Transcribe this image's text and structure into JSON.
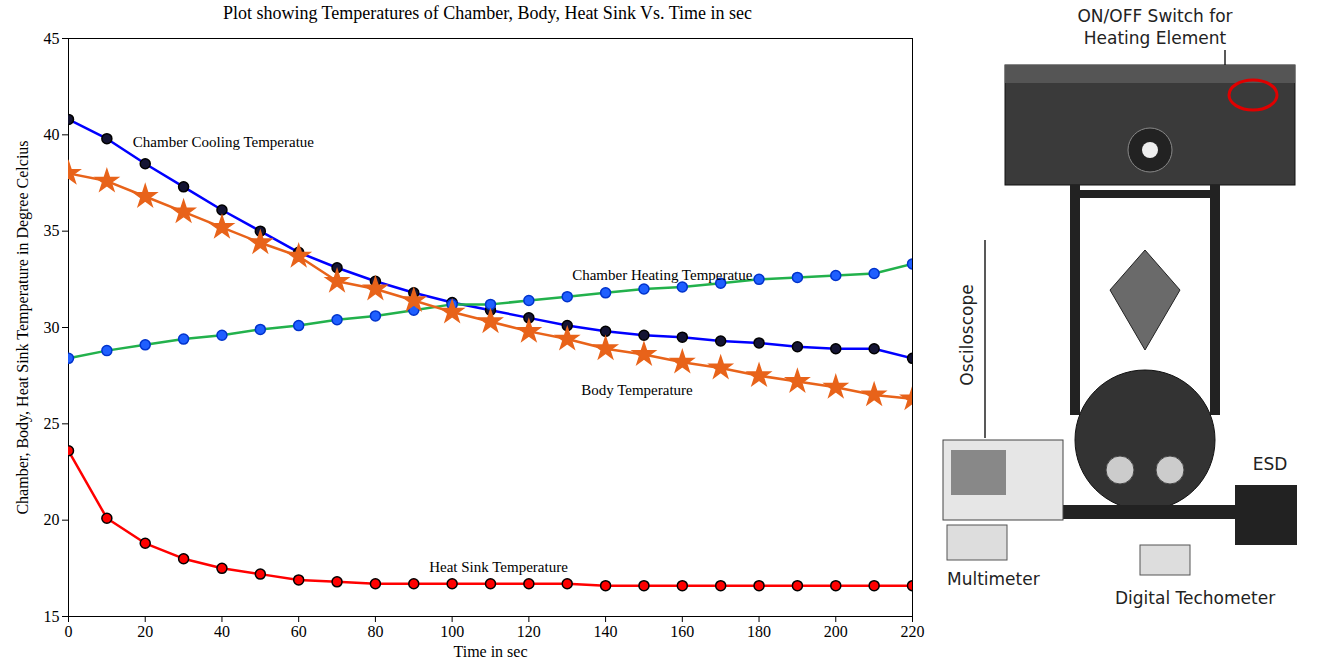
{
  "chart_data": {
    "type": "line",
    "title": "Plot showing Temperatures of Chamber, Body, Heat Sink Vs. Time in sec",
    "x_label": "Time in sec",
    "y_label": "Chamber, Body, Heat Sink Temperature in Degree Celcius",
    "x": [
      0,
      10,
      20,
      30,
      40,
      50,
      60,
      70,
      80,
      90,
      100,
      110,
      120,
      130,
      140,
      150,
      160,
      170,
      180,
      190,
      200,
      210,
      220
    ],
    "series": [
      {
        "name": "Chamber Cooling Temperatue",
        "color": "#0000ff",
        "marker": "circle",
        "values": [
          40.8,
          39.8,
          38.5,
          37.3,
          36.1,
          35.0,
          33.9,
          33.1,
          32.4,
          31.8,
          31.3,
          30.9,
          30.5,
          30.1,
          29.8,
          29.6,
          29.5,
          29.3,
          29.2,
          29.0,
          28.9,
          28.9,
          28.4
        ]
      },
      {
        "name": "Chamber Heating Temperatue",
        "color": "#22b14c",
        "marker": "circle",
        "values": [
          28.4,
          28.8,
          29.1,
          29.4,
          29.6,
          29.9,
          30.1,
          30.4,
          30.6,
          30.9,
          31.2,
          31.2,
          31.4,
          31.6,
          31.8,
          32.0,
          32.1,
          32.3,
          32.5,
          32.6,
          32.7,
          32.8,
          33.3
        ]
      },
      {
        "name": "Body Temperature",
        "color": "#e8631a",
        "marker": "star",
        "values": [
          38.0,
          37.6,
          36.8,
          36.0,
          35.2,
          34.4,
          33.7,
          32.4,
          32.0,
          31.4,
          30.8,
          30.3,
          29.8,
          29.4,
          28.9,
          28.6,
          28.2,
          27.9,
          27.5,
          27.2,
          26.9,
          26.5,
          26.3
        ]
      },
      {
        "name": "Heat Sink Temperature",
        "color": "#ff0000",
        "marker": "circle",
        "values": [
          23.6,
          20.1,
          18.8,
          18.0,
          17.5,
          17.2,
          16.9,
          16.8,
          16.7,
          16.7,
          16.7,
          16.7,
          16.7,
          16.7,
          16.6,
          16.6,
          16.6,
          16.6,
          16.6,
          16.6,
          16.6,
          16.6,
          16.6
        ]
      }
    ],
    "xlim": [
      0,
      220
    ],
    "xticks": [
      0,
      20,
      40,
      60,
      80,
      100,
      120,
      140,
      160,
      180,
      200,
      220
    ],
    "ylim": [
      15,
      45
    ],
    "yticks": [
      15,
      20,
      25,
      30,
      35,
      40,
      45
    ],
    "grid": false
  },
  "apparatus_photo": {
    "switch": "ON/OFF Switch for Heating Element",
    "oscilloscope": "Osciloscope",
    "multimeter": "Multimeter",
    "tachometer": "Digital Techometer",
    "storage": "ESD"
  }
}
